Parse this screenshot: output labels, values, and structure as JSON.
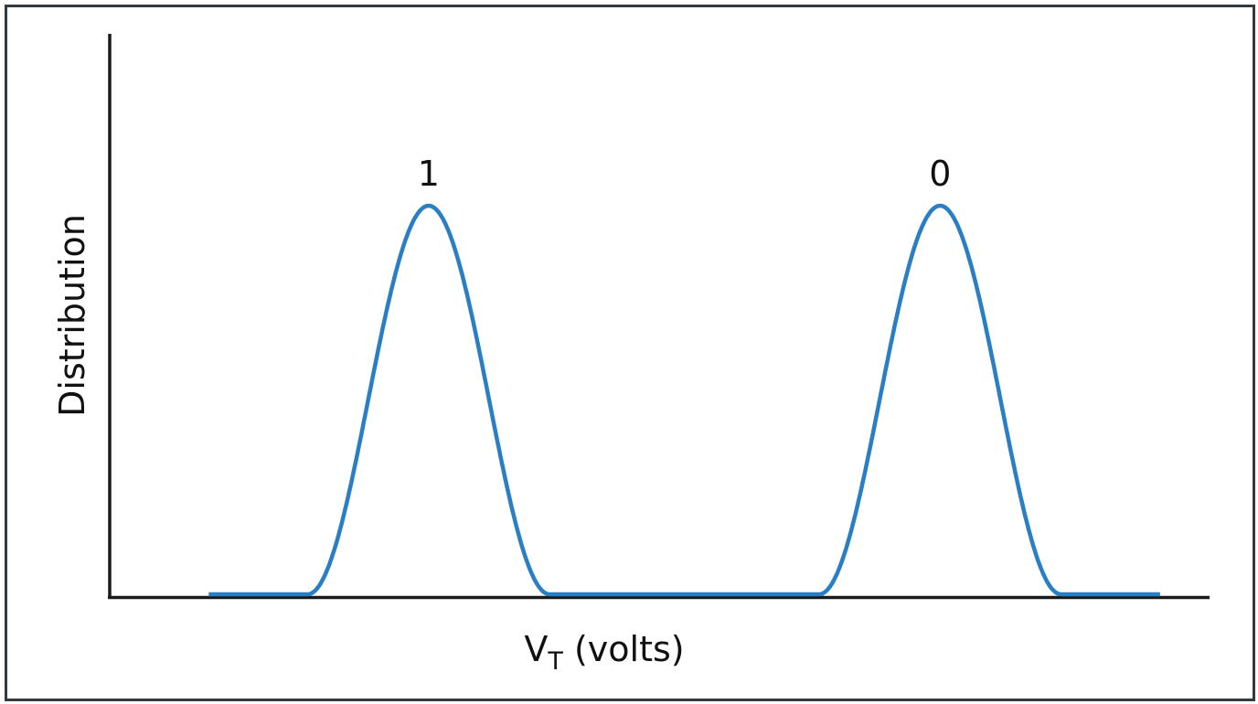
{
  "chart_data": {
    "type": "line",
    "xlabel_main": "V",
    "xlabel_sub": "T",
    "xlabel_rest": " (volts)",
    "ylabel": "Distribution",
    "line_color": "#2a7fc4",
    "axis_color": "#1a1a1a",
    "frame_color": "#333a40",
    "grid": false,
    "legend": "none",
    "xlim": [
      0,
      100
    ],
    "ylim": [
      0,
      100
    ],
    "series": [
      {
        "peaks": [
          {
            "label": "1",
            "center": 29.0,
            "half_width": 11.0,
            "height": 100
          },
          {
            "label": "0",
            "center": 75.5,
            "half_width": 11.0,
            "height": 100
          }
        ],
        "x_start": 9.0,
        "x_end": 95.5
      }
    ]
  }
}
